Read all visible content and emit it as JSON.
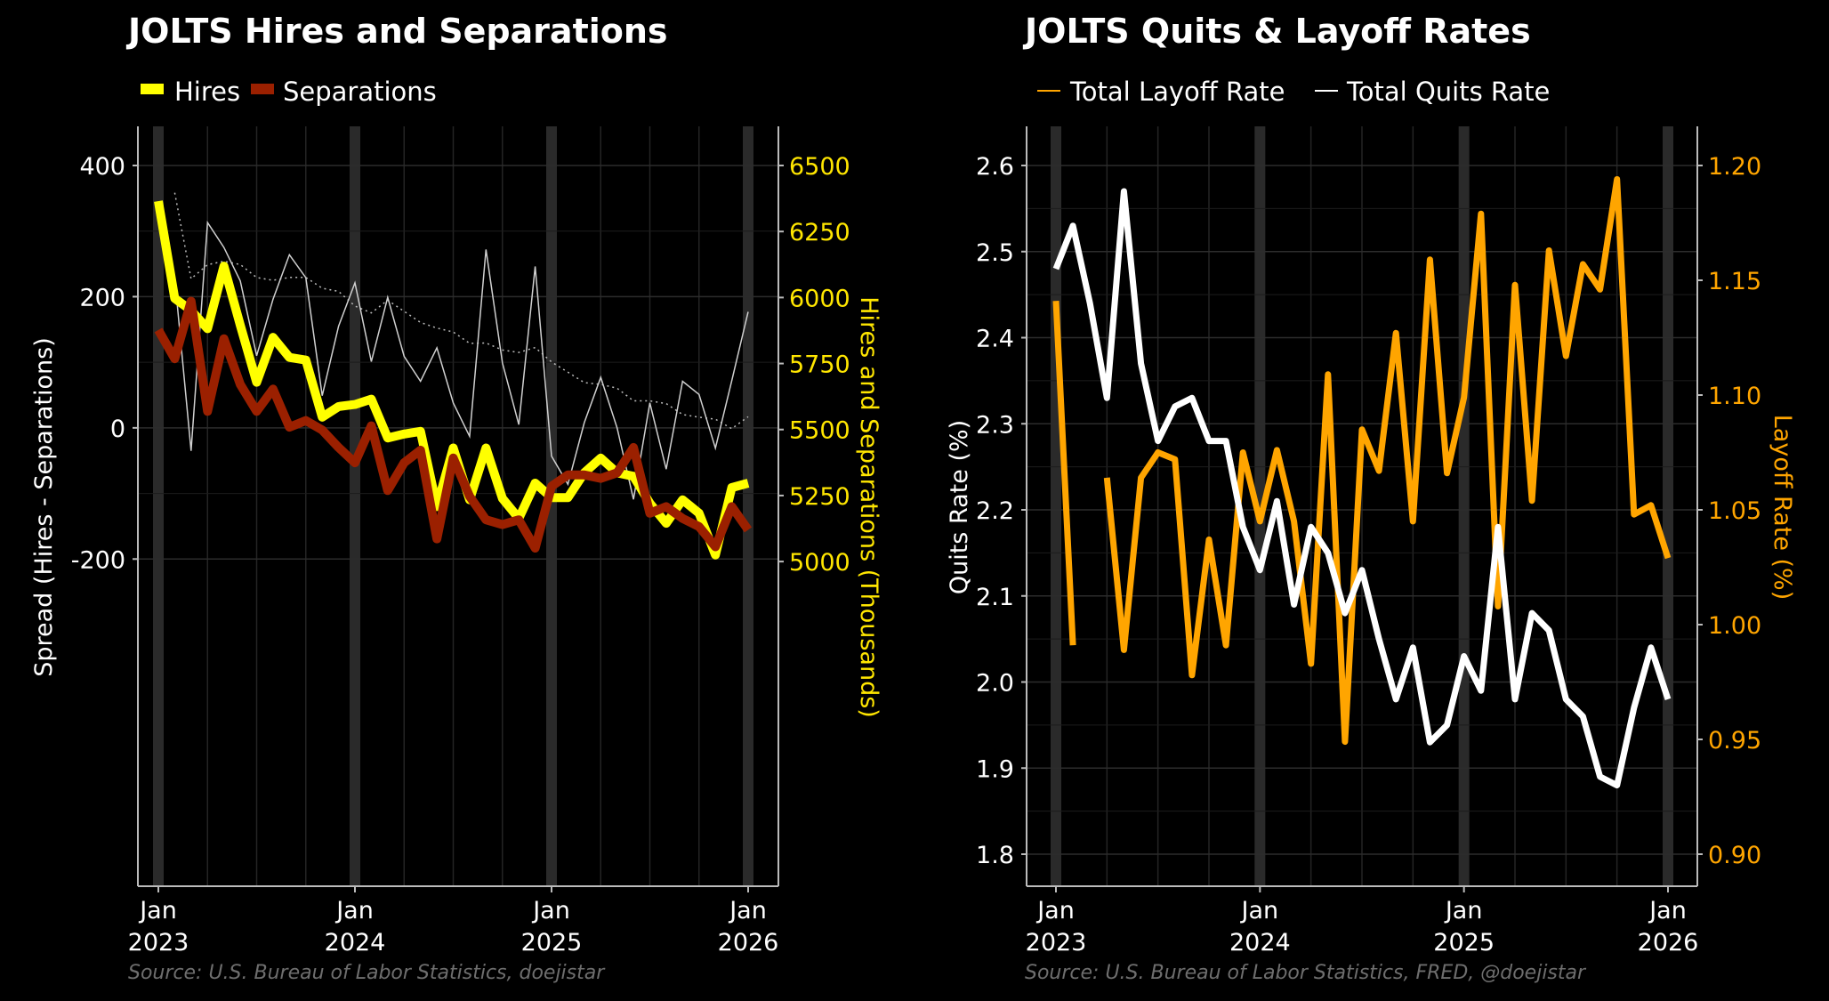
{
  "chart_data": [
    {
      "type": "line",
      "title": "JOLTS Hires and Separations",
      "source": "Source: U.S. Bureau of Labor Statistics, doejistar",
      "legend": {
        "placement": "top-left",
        "entries": [
          "Hires",
          "Separations"
        ]
      },
      "ylabel": "Spread (Hires - Separations)",
      "y2label": "Hires and Separations (Thousands)",
      "ylim": [
        -230,
        400
      ],
      "y2lim": [
        4935,
        6500
      ],
      "yticks": [
        "400",
        "200",
        "0",
        "-200"
      ],
      "y2ticks": [
        "6500",
        "6250",
        "6000",
        "5750",
        "5500",
        "5250",
        "5000"
      ],
      "xticks": [
        [
          "Jan",
          "2023"
        ],
        [
          "Jan",
          "2024"
        ],
        [
          "Jan",
          "2025"
        ],
        [
          "Jan",
          "2026"
        ]
      ],
      "x_start": "2023-01",
      "x_months": 37,
      "colors": {
        "hires": "#ffff00",
        "separations": "#9b2000",
        "spread": "#d0d0d0",
        "y2": "#ffe600"
      },
      "series": [
        {
          "name": "Hires",
          "axis": "right",
          "values": [
            6365,
            5997,
            5951,
            5882,
            6119,
            5895,
            5679,
            5849,
            5773,
            5763,
            5547,
            5587,
            5595,
            5615,
            5468,
            5483,
            5493,
            5208,
            5430,
            5234,
            5430,
            5239,
            5163,
            5297,
            5242,
            5242,
            5336,
            5392,
            5336,
            5323,
            5221,
            5145,
            5234,
            5183,
            5025,
            5280,
            5297
          ]
        },
        {
          "name": "Separations",
          "axis": "right",
          "values": [
            5877,
            5768,
            5986,
            5569,
            5844,
            5671,
            5569,
            5653,
            5509,
            5534,
            5498,
            5432,
            5374,
            5514,
            5269,
            5374,
            5422,
            5086,
            5392,
            5247,
            5158,
            5140,
            5158,
            5051,
            5285,
            5328,
            5328,
            5315,
            5336,
            5432,
            5183,
            5208,
            5163,
            5132,
            5056,
            5208,
            5120
          ]
        }
      ]
    },
    {
      "type": "line",
      "title": "JOLTS Quits & Layoff Rates",
      "source": "Source: U.S. Bureau of Labor Statistics, FRED, @doejistar",
      "legend": {
        "placement": "top-left",
        "entries": [
          "Total Layoff Rate",
          "Total Quits Rate"
        ]
      },
      "ylabel": "Quits Rate (%)",
      "y2label": "Layoff Rate (%)",
      "ylim": [
        1.76,
        2.6
      ],
      "y2lim": [
        0.885,
        1.2
      ],
      "yticks": [
        "2.6",
        "2.5",
        "2.4",
        "2.3",
        "2.2",
        "2.1",
        "2.0",
        "1.9",
        "1.8"
      ],
      "y2ticks": [
        "1.20",
        "1.15",
        "1.10",
        "1.05",
        "1.00",
        "0.95",
        "0.90"
      ],
      "xticks": [
        [
          "Jan",
          "2023"
        ],
        [
          "Jan",
          "2024"
        ],
        [
          "Jan",
          "2025"
        ],
        [
          "Jan",
          "2026"
        ]
      ],
      "x_start": "2023-01",
      "x_months": 37,
      "colors": {
        "layoff": "#ffa500",
        "quits": "#ffffff",
        "y2": "#ffa500"
      },
      "series": [
        {
          "name": "Total Quits Rate",
          "axis": "left",
          "values": [
            2.48,
            2.53,
            2.44,
            2.33,
            2.57,
            2.37,
            2.28,
            2.32,
            2.33,
            2.28,
            2.28,
            2.18,
            2.13,
            2.21,
            2.09,
            2.18,
            2.15,
            2.08,
            2.13,
            2.05,
            1.98,
            2.04,
            1.93,
            1.95,
            2.03,
            1.99,
            2.18,
            1.98,
            2.08,
            2.06,
            1.98,
            1.96,
            1.89,
            1.88,
            1.97,
            2.04,
            1.98
          ]
        },
        {
          "name": "Total Layoff Rate",
          "axis": "right",
          "values": [
            1.141,
            0.991,
            null,
            1.064,
            0.989,
            1.064,
            1.075,
            1.072,
            0.978,
            1.037,
            0.991,
            1.075,
            1.045,
            1.076,
            1.045,
            0.983,
            1.109,
            0.949,
            1.085,
            1.067,
            1.127,
            1.045,
            1.159,
            1.066,
            1.099,
            1.179,
            1.008,
            1.148,
            1.054,
            1.163,
            1.117,
            1.157,
            1.146,
            1.194,
            1.048,
            1.052,
            1.029
          ]
        }
      ]
    }
  ]
}
